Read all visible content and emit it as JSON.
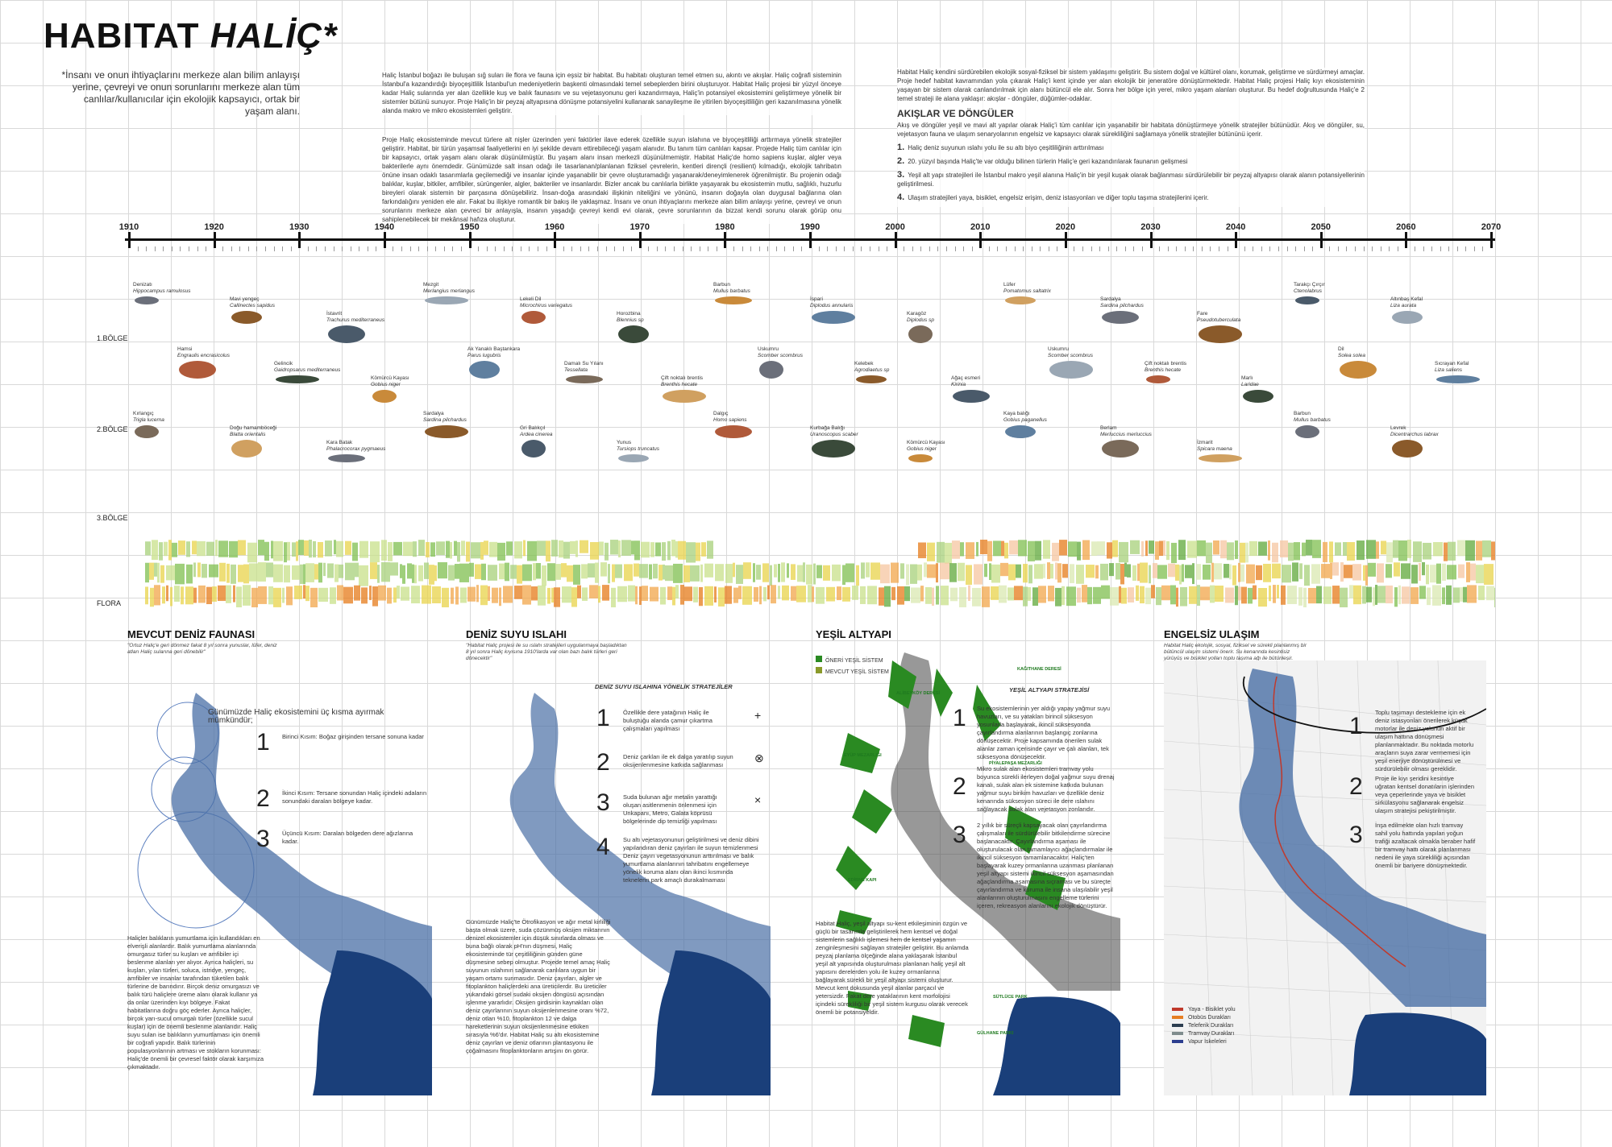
{
  "title": {
    "main": "HABITAT",
    "accent": "HALİÇ*"
  },
  "subtitle": "*İnsanı ve onun ihtiyaçlarını merkeze alan bilim anlayışı yerine, çevreyi ve onun sorunlarını merkeze alan tüm canlılar/kullanıcılar için ekolojik kapsayıcı, ortak bir yaşam alanı.",
  "intro": {
    "p1": "Haliç İstanbul boğazı ile buluşan sığ suları ile flora ve fauna için eşsiz bir habitat. Bu habitatı oluşturan temel etmen su, akıntı ve akışlar. Haliç coğrafi sisteminin İstanbul'a kazandırdığı biyoçeşitlilik İstanbul'un medeniyetlerin başkenti olmasındaki temel sebeplerden birini oluşturuyor. Habitat Haliç projesi bir yüzyıl önceye kadar Haliç sularında yer alan özellikle kuş ve balık faunasını ve su vejetasyonunu geri kazandırmaya, Haliç'in potansiyel ekosistemini geliştirmeye yönelik bir sistemler bütünü sunuyor. Proje Haliç'in bir peyzaj altyapısına dönüşme potansiyelini kullanarak sanayileşme ile yitirilen biyoçeşitliliğin geri kazanılmasına yönelik alanda makro ve mikro ekosistemleri geliştirir.",
    "p2": "Proje Haliç ekosisteminde mevcut türlere alt nişler üzerinden yeni faktörler ilave ederek özellikle suyun islahına ve biyoçeşitliliği arttırmaya yönelik stratejiler geliştirir. Habitat, bir türün yaşamsal faaliyetlerini en iyi şekilde devam ettirebileceği yaşam alanıdır. Bu tanım tüm canlıları kapsar. Projede Haliç tüm canlılar için bir kapsayıcı, ortak yaşam alanı olarak düşünülmüştür. Bu yaşam alanı insan merkezli düşünülmemiştir. Habitat Haliç'de homo sapiens kuşlar, algler veya bakterilerle aynı önemdedir. Günümüzde salt insan odağı ile tasarlanan/planlanan fiziksel çevrelerin, kentleri dirençli (resilient) kılmadığı, ekolojik tahribatın önüne insan odaklı tasarımlarla geçilemediği ve insanlar içinde yaşanabilir bir çevre oluşturamadığı yaşanarak/deneyimlenerek öğrenilmiştir. Bu projenin odağı balıklar, kuşlar, bitkiler, amfibiler, sürüngenler, algler, bakteriler ve insanlardır. Bizler ancak bu canlılarla birlikte yaşayarak bu ekosistemin mutlu, sağlıklı, huzurlu bireyleri olarak sistemin bir parçasına dönüşebiliriz. İnsan-doğa arasındaki ilişkinin niteliğini ve yönünü, insanın doğayla olan duygusal bağlarına olan farkındalığını yeniden ele alır. Fakat bu ilişkiye romantik bir bakış ile yaklaşmaz. İnsanı ve onun ihtiyaçlarını merkeze alan bilim anlayışı yerine, çevreyi ve onun sorunlarını merkeze alan çevreci bir anlayışla, insanın yaşadığı çevreyi kendi evi olarak, çevre sorunlarının da bizzat kendi sorunu olarak görüp onu sahiplenebilecek bir mekânsal hafıza oluşturur."
  },
  "right_text": {
    "p1": "Habitat Haliç kendini sürdürebilen ekolojik sosyal-fiziksel bir sistem yaklaşımı geliştirir. Bu sistem doğal ve kültürel olanı, korumak, geliştirme ve sürdürmeyi amaçlar. Proje hedef habitat kavramından yola çıkarak Haliç'i kent içinde yer alan ekolojik bir jeneratöre dönüştürmektedir. Habitat Haliç projesi Haliç kıyı ekosisteminin yaşayan bir sistem olarak canlandırılmak için alanı bütüncül ele alır. Sonra her bölge için yerel, mikro yaşam alanları oluşturur. Bu hedef doğrultusunda Haliç'e 2 temel strateji ile alana yaklaşır: akışlar - döngüler, düğümler-odaklar.",
    "akislar_title": "AKIŞLAR VE DÖNGÜLER",
    "p2": "Akış ve döngüler yeşil ve mavi alt yapılar olarak Haliç'i tüm canlılar için yaşanabilir bir habitata dönüştürmeye yönelik stratejiler bütünüdür. Akış ve döngüler, su, vejetasyon fauna ve ulaşım senaryolarının engelsiz ve kapsayıcı olarak sürekliliğini sağlamaya yönelik stratejiler bütününü içerir.",
    "items": [
      {
        "n": "1.",
        "t": "Haliç deniz suyunun ıslahı yolu ile su altı biyo çeşitliliğinin arttırılması"
      },
      {
        "n": "2.",
        "t": "20. yüzyıl başında Haliç'te var olduğu bilinen türlerin Haliç'e geri kazandırılarak faunanın gelişmesi"
      },
      {
        "n": "3.",
        "t": "Yeşil alt yapı stratejileri ile İstanbul makro yeşil alanına Haliç'in bir yeşil kuşak olarak bağlanması sürdürülebilir bir peyzaj altyapısı olarak alanın potansiyellerinin geliştirilmesi."
      },
      {
        "n": "4.",
        "t": "Ulaşım stratejileri yaya, bisiklet, engelsiz erişim, deniz istasyonları ve diğer toplu taşıma stratejilerini içerir."
      }
    ]
  },
  "timeline": {
    "years": [
      "1910",
      "1920",
      "1930",
      "1940",
      "1950",
      "1960",
      "1970",
      "1980",
      "1990",
      "2000",
      "2010",
      "2020",
      "2030",
      "2040",
      "2050",
      "2060",
      "2070"
    ],
    "zones": [
      "1.BÖLGE",
      "2.BÖLGE",
      "3.BÖLGE"
    ],
    "flora_label": "FLORA"
  },
  "species": [
    {
      "n": "Denizatı",
      "s": "Hippocampus ramulosus"
    },
    {
      "n": "Mavi yengeç",
      "s": "Callinectes sapidus"
    },
    {
      "n": "İstavrit",
      "s": "Trachurus mediterraneus"
    },
    {
      "n": "Mezgit",
      "s": "Merlangius merlangus"
    },
    {
      "n": "Lekeli Dil",
      "s": "Microchirus variegatus"
    },
    {
      "n": "Horozbina",
      "s": "Blennius sp"
    },
    {
      "n": "Barbun",
      "s": "Mullus barbatus"
    },
    {
      "n": "İspari",
      "s": "Diplodus annularis"
    },
    {
      "n": "Karagöz",
      "s": "Diplodus sp"
    },
    {
      "n": "Lüfer",
      "s": "Pomatomus saltatrix"
    },
    {
      "n": "Sardalya",
      "s": "Sardina pilchardus"
    },
    {
      "n": "Fare",
      "s": "Pseudotuberculata"
    },
    {
      "n": "Tarakçı Çırçır",
      "s": "Ctenolabrus"
    },
    {
      "n": "Altınbaş Kefal",
      "s": "Liza aurata"
    },
    {
      "n": "Hamsi",
      "s": "Engraulis encrasicolus"
    },
    {
      "n": "Gelincik",
      "s": "Gaidropsarus mediterraneus"
    },
    {
      "n": "Kömürcü Kayası",
      "s": "Gobius niger"
    },
    {
      "n": "Ak Yanaklı Baştankara",
      "s": "Parus lugubris"
    },
    {
      "n": "Damalı Su Yılanı",
      "s": "Tessellata"
    },
    {
      "n": "Çift noktalı brentis",
      "s": "Brenthis hecate"
    },
    {
      "n": "Uskumru",
      "s": "Scomber scombrus"
    },
    {
      "n": "Kelebek",
      "s": "Agrodiaetus sp"
    },
    {
      "n": "Ağaç esmeri",
      "s": "Kirinia"
    },
    {
      "n": "Uskumru",
      "s": "Scomber scombrus"
    },
    {
      "n": "Çift noktalı brentis",
      "s": "Brenthis hecate"
    },
    {
      "n": "Marlı",
      "s": "Laridae"
    },
    {
      "n": "Dil",
      "s": "Solea solea"
    },
    {
      "n": "Sıcrayan Kefal",
      "s": "Liza saliens"
    },
    {
      "n": "Kırlangıç",
      "s": "Trigla lucerna"
    },
    {
      "n": "Doğu hamamböceği",
      "s": "Blatta orientalis"
    },
    {
      "n": "Kara Batak",
      "s": "Phalacrocorax pygmaeus"
    },
    {
      "n": "Sardalya",
      "s": "Sardina pilchardus"
    },
    {
      "n": "Gri Balıkçıl",
      "s": "Ardea cinerea"
    },
    {
      "n": "Yunus",
      "s": "Tursiops truncatus"
    },
    {
      "n": "Dalgıç",
      "s": "Homo sapiens"
    },
    {
      "n": "Kurbağa Balığı",
      "s": "Uranoscopus scaber"
    },
    {
      "n": "Kömürcü Kayası",
      "s": "Gobius niger"
    },
    {
      "n": "Kaya balığı",
      "s": "Gobius paganellus"
    },
    {
      "n": "Berlam",
      "s": "Merluccius merluccius"
    },
    {
      "n": "İzmarit",
      "s": "Spicara maena"
    },
    {
      "n": "Barbun",
      "s": "Mullus barbatus"
    },
    {
      "n": "Levrek",
      "s": "Dicentrarchus labrax"
    }
  ],
  "panels": [
    {
      "title": "MEVCUT DENİZ FAUNASI",
      "sub": "\"Ortuz Haliç'e geri dönmez fakat 8 yıl sonra yunuslar, lüfer, deniz atları Haliç sularına geri dönebilir\"",
      "heading": "Günümüzde Haliç ekosistemini üç kısma ayırmak mümkündür;",
      "steps": [
        "Birinci Kısım: Boğaz girişinden tersane sonuna kadar",
        "İkinci Kısım: Tersane sonundan Haliç içindeki adaların sonundaki daralan bölgeye kadar.",
        "Üçüncü Kısım: Daralan bölgeden dere ağızlarına kadar."
      ],
      "body": "Haliçler balıkların yumurtlama için kullandıkları en elverişli alanlardır. Balık yumurtlama alanlarında omurgasız türler su kuşları ve amfibiler içi beslenme alanları yer alıyor. Ayrıca haliçleri, su kuşları, yılan türleri, soluca, istridye, yengeç, amfibiler ve insanlar tarafından tüketilen balık türlerine de barındırır. Birçok deniz omurgasızı ve balık türü haliçlere üreme alanı olarak kullanır ya da onlar üzerinden kıyı bölgeye. Fakat habitatlarına doğru göç ederler. Ayrıca haliçler, birçok yarı-sucul omurgalı türler (özellikle sucul kuşlar) için de önemli beslenme alanlarıdır. Haliç suyu sulan ise balıkların yumurtlaması için önemli bir coğrafi yapıdır. Balık türlerinin populasyonlarının artması ve stokların korunması: Haliç'de önemli bir çevresel faktör olarak karşımıza çıkmaktadır."
    },
    {
      "title": "DENİZ SUYU ISLAHI",
      "sub": "\"Habitat Haliç projesi ile su ıslahı stratejileri uygulanmaya başladıktan 8 yıl sonra Haliç kıyısına 1910'larda var olan bazı balık türleri geri dönecektir\"",
      "heading": "DENİZ SUYU ISLAHINA YÖNELİK STRATEJİLER",
      "steps": [
        "Özellikle dere yatağının Haliç ile buluştuğu alanda çamur çıkartma çalışmaları yapılması",
        "Deniz çarkları ile ek dalga yaratılıp suyun oksijenlenmesine katkıda sağlanması",
        "Suda bulunan ağır metalin yarattığı oluşan asitlenmenin önlenmesi için Unkapanı, Metro, Galata köprüsü bölgelerinde dip temizliği yapılması",
        "Su altı vejetasyonunun geliştirilmesi ve deniz dibini yapılandıran deniz çayırları ile suyun temizlenmesi Deniz çayırı vegetasyonunun arttırılması ve balık yumurtlama alanlarının tahribatını engellemeye yönelik koruma alanı olan ikinci kısmında teknelerin park amaçlı durakalmaması"
      ],
      "symbols": [
        "+",
        "⊗",
        "×",
        ""
      ],
      "body": "Günümüzde Haliç'te Ötrofikasyon ve ağır metal kirliliği başta olmak üzere, suda çözünmüş oksijen miktarının denizel ekosistemler için düşük sınırlarda olması ve buna bağlı olarak pH'nın düşmesi, Haliç ekosisteminde tür çeşitliliğinin günden güne düşmesine sebep olmuştur. Projede temel amaç Haliç suyunun ıslahının sağlanarak canlılara uygun bir yaşam ortamı sunmasıdır. Deniz çayırları, algler ve fitoplankton haliçlerdeki ana üreticilerdir. Bu üreticiler yukarıdaki görsel sudaki oksijen döngüsü açısından işlenme yararlıdır. Oksijen girdisinin kaynakları olan deniz çayırlarının suyun oksijenlenmesine oranı %72, deniz otları %10, fitoplankton 12 ve dalga hareketlerinin suyun oksijenlenmesine etkiken sırasıyla %6'dır. Habitat Haliç su altı ekosistemine deniz çayırları ve deniz otlarının plantasyonu ile çoğalmasını fitoplanktonların artışını ön görür."
    },
    {
      "title": "YEŞİL ALTYAPI",
      "legend": [
        "ÖNERİ YEŞİL SİSTEM",
        "MEVCUT YEŞİL SİSTEM"
      ],
      "heading": "YEŞİL ALTYAPI STRATEJİSİ",
      "steps": [
        "Su ekosistemlerinin yer aldığı yapay yağmur suyu havuzları, ve su yatakları birincil süksesyon yosunlarla başlayarak, ikincil süksesyonda çayırlandırma alanlarının başlangıç zonlarına dönüşecektir. Proje kapsamında önerilen sulak alanlar zaman içerisinde çayır ve çalı alanları, tek süksesyona dönüşecektir.",
        "Mikro sulak alan ekosistemleri tramvay yolu boyunca sürekli ilerleyen doğal yağmur suyu drenaj kanalı, sulak alan ek sistemine katkıda bulunan yağmur suyu birikim havuzları ve özellikle deniz kenarında süksesyon süreci ile dere ıslahını sağlayacak sulak alan vejetasyon zonlarıdır.",
        "2 yıllık bir süreçli kapsayacak olan çayırlandırma çalışmaları ile sürdürülebilir bitkilendirme sürecine başlanacaktır. Çayırlandırma aşaması ile oluşturulacak olan tamamlayıcı ağaçlandırmalar ile ikincil süksesyon tamamlanacaktır. Haliç'ten başlayarak kuzey ormanlarına uzanması planlanan yeşil altyapı sistemi ikincil süksesyon aşamasından ağaçlandırma aşamasına sıçraması ve bu süreçte çayırlandırma ve koruma ile insana ulaşılabilir yeşil alanlarının oluşturulmasını engelleme türlerini içeren, rekreasyon alanlarını ekolojik dönüştürür."
      ],
      "body": "Habitat Haliç, yeşil altyapı su-kent etkileşiminin özgün ve güçlü bir tasarımla geliştirilerek hem kentsel ve doğal sistemlerin sağlıklı işlemesi hem de kentsel yaşamın zenginleşmesini sağlayan stratejiler geliştirir. Bu anlamda peyzaj planlama ölçeğinde alana yaklaşarak İstanbul yeşil alt yapısında oluşturulması planlanan haliç yeşil alt yapısını derelerden yolu ile kuzey ormanlarına bağlayarak sürekli bir yeşil altyapı sistemi oluşturur. Mevcut kent dokusunda yeşil alanlar parçacıl ve yetersizdir. Fakat dere yataklarının kent morfolojisi içindeki sürekliliği bir yeşil sistem kurgusu olarak verecek önemli bir potansiyeldir.",
      "labels": [
        "KAĞITHANE DERESİ",
        "ALİBEYKÖY DERESİ",
        "EYÜP MEZARLIĞI",
        "PİYALEPAŞA MEZARLIĞI",
        "EDİRNE KAPI",
        "SÜTLÜCE PARK",
        "GÜLHANE PARKI"
      ]
    },
    {
      "title": "ENGELSİZ ULAŞIM",
      "sub": "Habitat Haliç ekolojik, sosyal, fiziksel ve sürekli planlanmış bir bütüncül ulaşım sistemi önerir. Su kenarında kesintisiz yürüyüş ve bisiklet yolları toplu taşıma ağı ile bütünleşir.",
      "steps": [
        "Toplu taşımayı destekleme için ek deniz istasyonları önerilerek küçük motorlar ile deniz yolunun aktif bir ulaşım hattına dönüşmesi planlanmaktadır. Bu noktada motorlu araçların suya zarar vermemesi için yeşil enerjiye dönüştürülmesi ve sürdürülebilir olması gereklidir.",
        "Proje ile kıyı şeridini kesintiye uğratan kentsel donatıların işlerinden veya çeperlerinde yaya ve bisiklet sirkülasyonu sağlanarak engelsiz ulaşım stratejisi pekiştirilmiştir.",
        "İnşa edilmekte olan hızlı tramvay sahil yolu hattında yapılan yoğun trafiği azaltacak olmakla beraber hafif bir tramvay hattı olarak planlanması nedeni ile yaya sürekliliği açısından önemli bir bariyere dönüşmektedir."
      ],
      "legend": [
        "Yaya - Bisiklet yolu",
        "Otobüs Durakları",
        "Teleferik Durakları",
        "Tramvay Durakları",
        "Vapur İskeleleri"
      ]
    }
  ],
  "colors": {
    "green_dark": "#2a8a22",
    "green_light": "#9bc97a",
    "flora_orange": "#e57b1a",
    "flora_yellow": "#e8d34a",
    "sea": "#1a3f7a"
  }
}
